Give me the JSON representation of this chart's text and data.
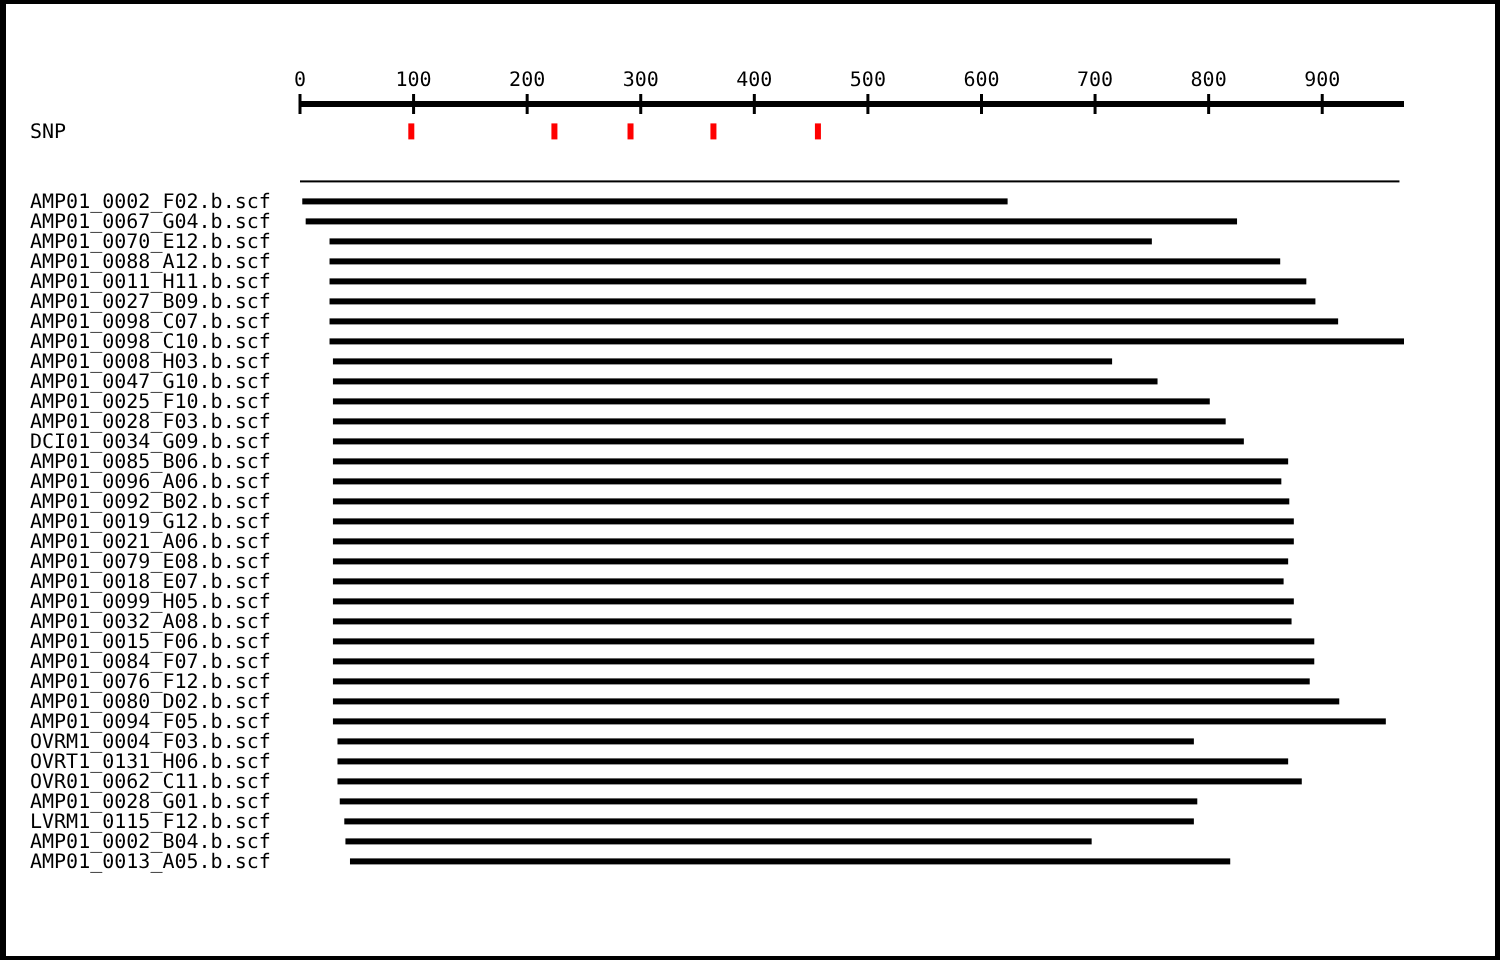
{
  "chart_data": {
    "type": "bar",
    "orientation": "horizontal",
    "categories": [
      "SNP",
      null,
      "AMP01_0002_F02.b.scf",
      "AMP01_0067_G04.b.scf",
      "AMP01_0070_E12.b.scf",
      "AMP01_0088_A12.b.scf",
      "AMP01_0011_H11.b.scf",
      "AMP01_0027_B09.b.scf",
      "AMP01_0098_C07.b.scf",
      "AMP01_0098_C10.b.scf",
      "AMP01_0008_H03.b.scf",
      "AMP01_0047_G10.b.scf",
      "AMP01_0025_F10.b.scf",
      "AMP01_0028_F03.b.scf",
      "DCI01_0034_G09.b.scf",
      "AMP01_0085_B06.b.scf",
      "AMP01_0096_A06.b.scf",
      "AMP01_0092_B02.b.scf",
      "AMP01_0019_G12.b.scf",
      "AMP01_0021_A06.b.scf",
      "AMP01_0079_E08.b.scf",
      "AMP01_0018_E07.b.scf",
      "AMP01_0099_H05.b.scf",
      "AMP01_0032_A08.b.scf",
      "AMP01_0015_F06.b.scf",
      "AMP01_0084_F07.b.scf",
      "AMP01_0076_F12.b.scf",
      "AMP01_0080_D02.b.scf",
      "AMP01_0094_F05.b.scf",
      "OVRM1_0004_F03.b.scf",
      "OVRT1_0131_H06.b.scf",
      "OVR01_0062_C11.b.scf",
      "AMP01_0028_G01.b.scf",
      "LVRM1_0115_F12.b.scf",
      "AMP01_0002_B04.b.scf",
      "AMP01_0013_A05.b.scf"
    ],
    "series": [
      {
        "color": "#000000",
        "base": [
          null,
          0,
          2,
          5,
          26,
          26,
          26,
          26,
          26,
          26,
          29,
          29,
          29,
          29,
          29,
          29,
          29,
          29,
          29,
          29,
          29,
          29,
          29,
          29,
          29,
          29,
          29,
          29,
          29,
          33,
          33,
          33,
          35,
          39,
          40,
          44
        ],
        "values": [
          null,
          968,
          621,
          820,
          724,
          837,
          860,
          868,
          888,
          946,
          686,
          726,
          772,
          786,
          802,
          841,
          835,
          842,
          846,
          846,
          841,
          837,
          846,
          844,
          864,
          864,
          860,
          886,
          927,
          754,
          837,
          849,
          755,
          748,
          657,
          775
        ]
      },
      {
        "type": "scatter",
        "color": "#ff0000",
        "x": [
          "SNP",
          "SNP",
          "SNP",
          "SNP",
          "SNP"
        ],
        "values": [
          98,
          224,
          291,
          364,
          456
        ]
      }
    ],
    "xlim": [
      0,
      972
    ],
    "xticks": [
      0,
      100,
      200,
      300,
      400,
      500,
      600,
      700,
      800,
      900
    ],
    "grid": false,
    "marker": "square"
  }
}
